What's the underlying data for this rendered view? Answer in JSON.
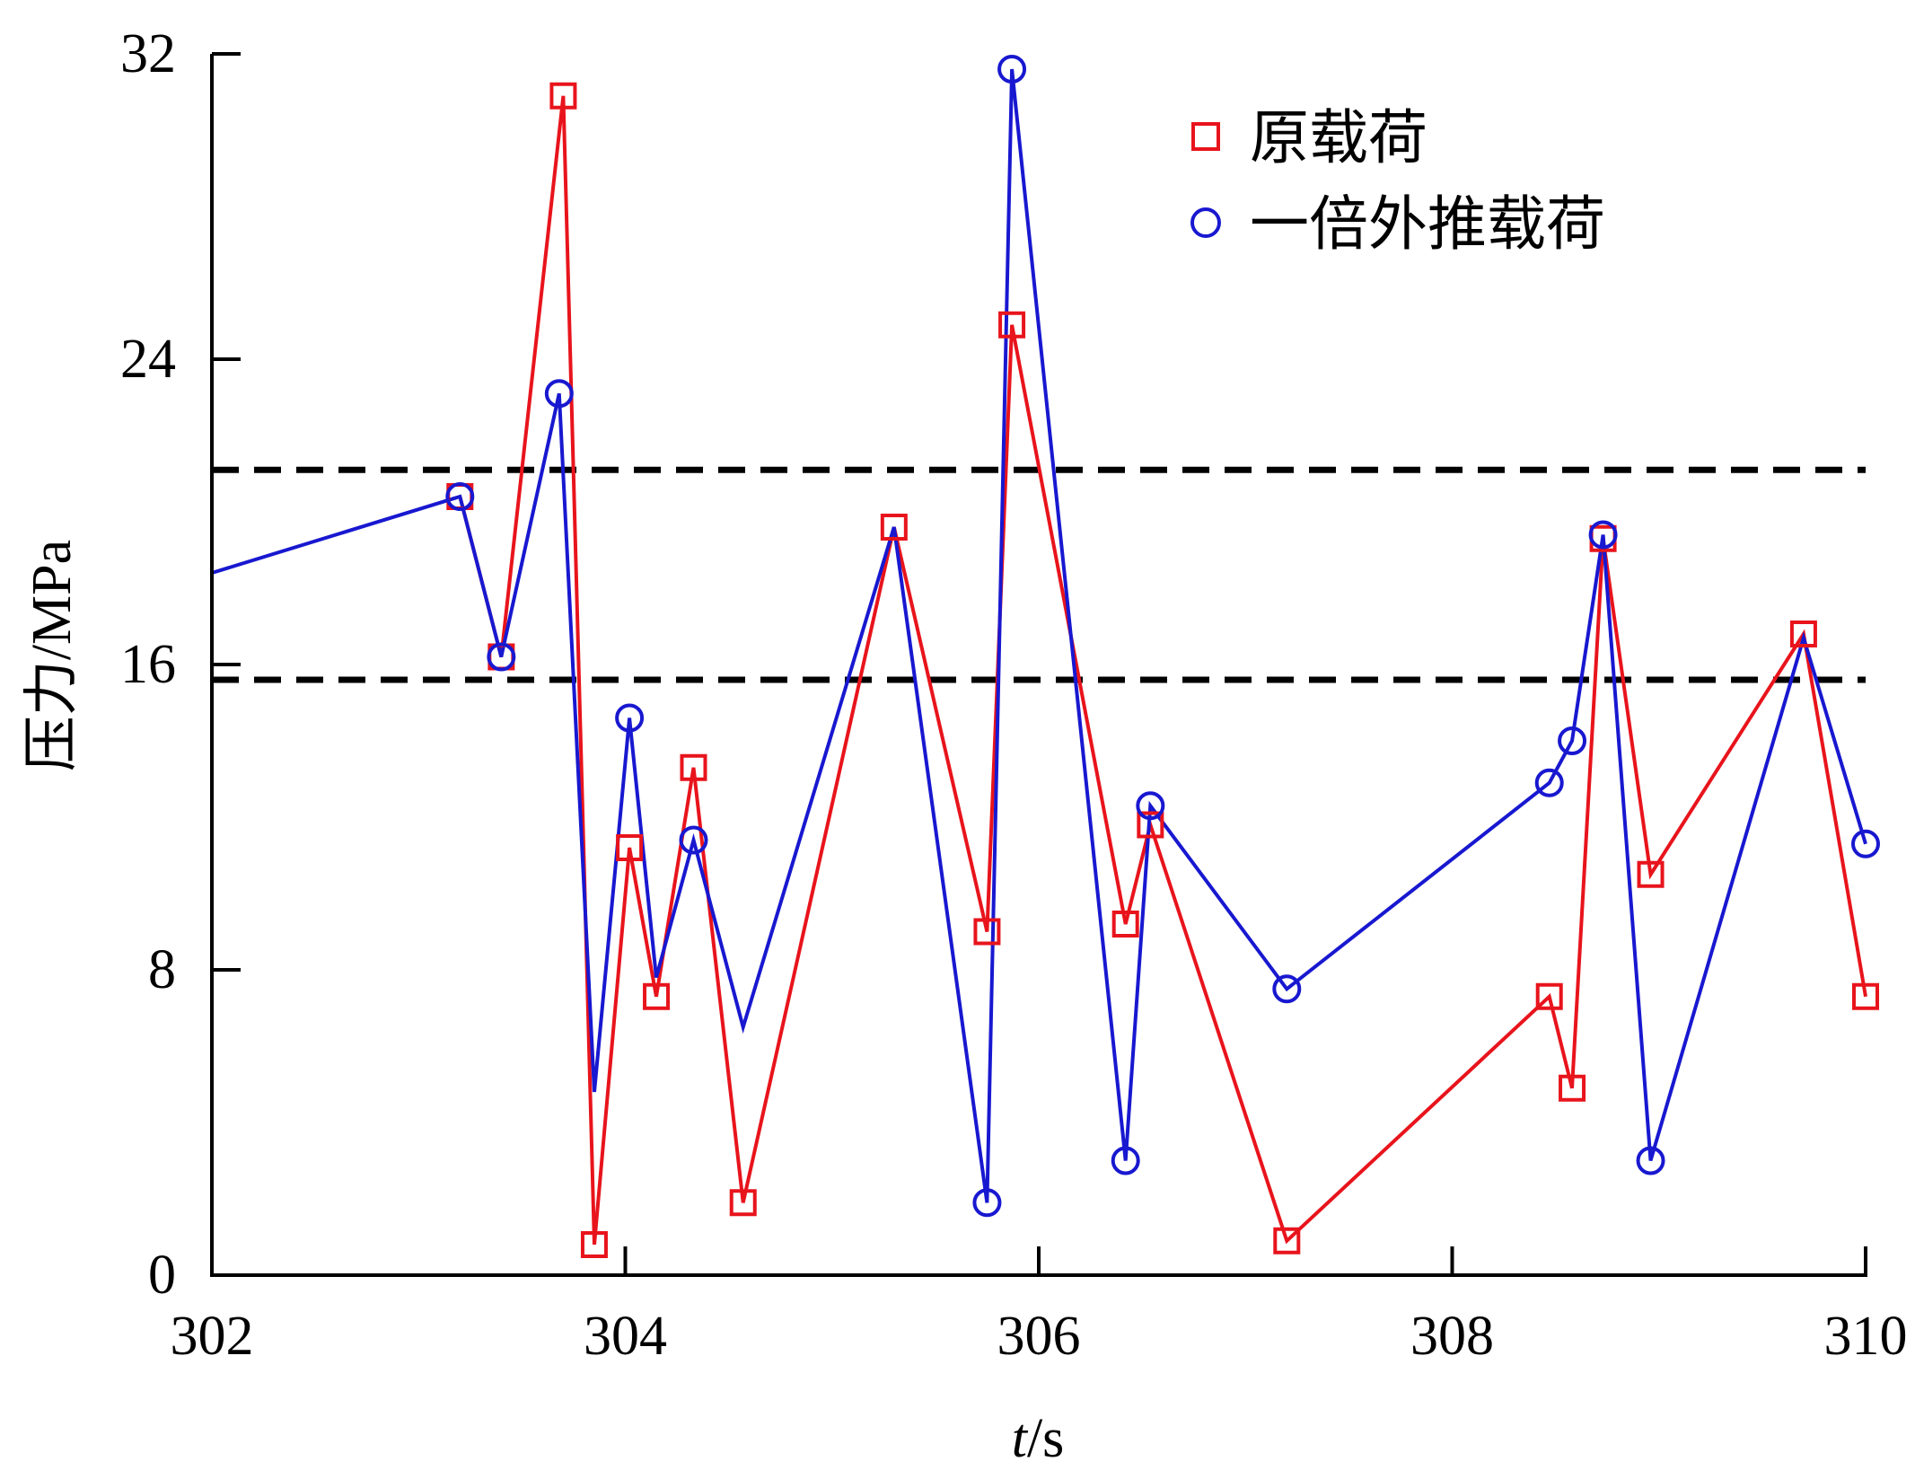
{
  "chart_data": {
    "type": "line",
    "xlabel_italic": "t",
    "xlabel_unit": "/s",
    "ylabel": "压力/MPa",
    "xlim": [
      302,
      310
    ],
    "ylim": [
      0,
      32
    ],
    "x_ticks": [
      302,
      304,
      306,
      308,
      310
    ],
    "y_ticks": [
      0,
      8,
      16,
      24,
      32
    ],
    "reference_lines": [
      {
        "y": 21.1,
        "style": "dashed",
        "color": "#000000"
      },
      {
        "y": 15.6,
        "style": "dashed",
        "color": "#000000"
      }
    ],
    "series": [
      {
        "name": "原载荷",
        "color": "#e8141c",
        "marker": "square",
        "points": [
          [
            303.2,
            20.4
          ],
          [
            303.4,
            16.2
          ],
          [
            303.7,
            30.9
          ],
          [
            303.85,
            0.8
          ],
          [
            304.02,
            11.2
          ],
          [
            304.15,
            7.3
          ],
          [
            304.33,
            13.3
          ],
          [
            304.57,
            1.9
          ],
          [
            305.3,
            19.6
          ],
          [
            305.75,
            9.0
          ],
          [
            305.87,
            24.9
          ],
          [
            306.42,
            9.2
          ],
          [
            306.54,
            11.8
          ],
          [
            307.2,
            0.9
          ],
          [
            308.47,
            7.3
          ],
          [
            308.58,
            4.9
          ],
          [
            308.73,
            19.3
          ],
          [
            308.96,
            10.5
          ],
          [
            309.7,
            16.8
          ],
          [
            310.0,
            7.3
          ]
        ]
      },
      {
        "name": "一倍外推载荷",
        "color": "#1818d0",
        "marker": "circle",
        "points": [
          [
            302.0,
            18.4
          ],
          [
            303.2,
            20.4
          ],
          [
            303.4,
            16.2
          ],
          [
            303.68,
            23.1
          ],
          [
            303.85,
            4.8
          ],
          [
            304.02,
            14.6
          ],
          [
            304.15,
            7.8
          ],
          [
            304.33,
            11.4
          ],
          [
            304.57,
            6.5
          ],
          [
            305.3,
            19.6
          ],
          [
            305.75,
            1.9
          ],
          [
            305.87,
            31.6
          ],
          [
            306.42,
            3.0
          ],
          [
            306.54,
            12.3
          ],
          [
            307.2,
            7.5
          ],
          [
            308.47,
            12.9
          ],
          [
            308.58,
            14.0
          ],
          [
            308.73,
            19.4
          ],
          [
            308.96,
            3.0
          ],
          [
            309.7,
            16.7
          ],
          [
            310.0,
            11.3
          ]
        ],
        "unmarked_indices": [
          0,
          4,
          6,
          8,
          9,
          19
        ]
      }
    ],
    "legend": {
      "position": "top-right"
    }
  }
}
